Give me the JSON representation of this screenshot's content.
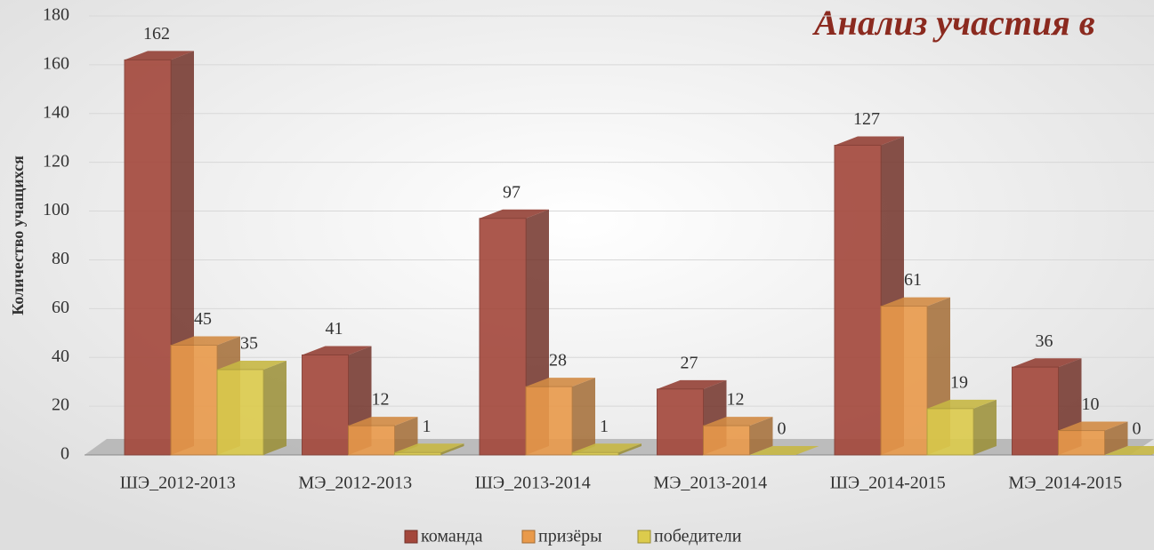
{
  "chart_data": {
    "type": "bar3d",
    "title": "Анализ участия в",
    "y_label": "Количество учащихся",
    "categories": [
      "ШЭ_2012-2013",
      "МЭ_2012-2013",
      "ШЭ_2013-2014",
      "МЭ_2013-2014",
      "ШЭ_2014-2015",
      "МЭ_2014-2015"
    ],
    "series": [
      {
        "name": "команда",
        "color": "#a3473b",
        "values": [
          162,
          41,
          97,
          27,
          127,
          36
        ]
      },
      {
        "name": "призёры",
        "color": "#e99a4b",
        "values": [
          45,
          12,
          28,
          12,
          61,
          10
        ]
      },
      {
        "name": "победители",
        "color": "#dccb4c",
        "values": [
          35,
          1,
          1,
          0,
          19,
          0
        ]
      }
    ],
    "ylim": [
      0,
      180
    ],
    "yticks": [
      0,
      20,
      40,
      60,
      80,
      100,
      120,
      140,
      160,
      180
    ],
    "grid": true,
    "legend": "bottom"
  }
}
